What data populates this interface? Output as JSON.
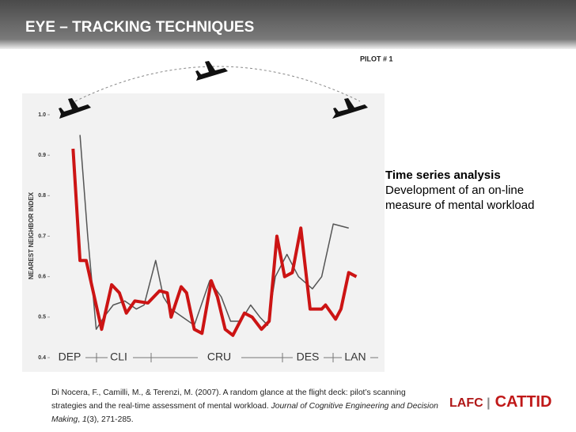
{
  "slide": {
    "title": "EYE – TRACKING TECHNIQUES",
    "note_title": "Time series analysis",
    "note_body": [
      "Development of an on-line",
      "measure of mental workload"
    ],
    "citation": [
      {
        "text": "Di Nocera, F., Camilli, M., & Terenzi, M. (2007). A random glance at the flight deck: pilot’s scanning strategies and the real-time assessment of mental workload. ",
        "italic": false
      },
      {
        "text": "Journal of Cognitive Engineering and Decision Making",
        "italic": true
      },
      {
        "text": ", ",
        "italic": false
      },
      {
        "text": "1",
        "italic": true
      },
      {
        "text": "(3), 271-285.",
        "italic": false
      }
    ],
    "logo": [
      "LAFC",
      "CATTID"
    ]
  },
  "chart_data": {
    "type": "line",
    "annotation": "PILOT # 1",
    "ylabel": "NEAREST NEIGHBOR INDEX",
    "phases": [
      "DEP",
      "CLI",
      "CRU",
      "DES",
      "LAN"
    ],
    "xlim": [
      60,
      475
    ],
    "ylim": [
      0.4,
      1.0
    ],
    "yticks": [
      {
        "value": 1.0,
        "label": "1.0"
      },
      0.9,
      0.8,
      0.7,
      0.6,
      0.5,
      0.4
    ],
    "series": [
      {
        "color": "#555555",
        "width": 1.5,
        "x": [
          97,
          107,
          118,
          128,
          140,
          155,
          170,
          180,
          195,
          205,
          215,
          230,
          245,
          265,
          280,
          292,
          305,
          318,
          330,
          340,
          350,
          365,
          380,
          398,
          410,
          425,
          445
        ],
        "values": [
          0.95,
          0.7,
          0.47,
          0.5,
          0.53,
          0.54,
          0.52,
          0.53,
          0.64,
          0.55,
          0.52,
          0.5,
          0.48,
          0.59,
          0.55,
          0.49,
          0.49,
          0.53,
          0.5,
          0.48,
          0.6,
          0.655,
          0.6,
          0.57,
          0.6,
          0.73,
          0.72
        ]
      },
      {
        "color": "#cc1414",
        "width": 4,
        "x": [
          88,
          97,
          105,
          125,
          138,
          148,
          157,
          168,
          185,
          200,
          210,
          215,
          228,
          235,
          245,
          255,
          267,
          275,
          285,
          295,
          310,
          320,
          332,
          342,
          352,
          362,
          372,
          383,
          395,
          410,
          415,
          428,
          435,
          445,
          455
        ],
        "values": [
          0.916,
          0.64,
          0.64,
          0.47,
          0.58,
          0.56,
          0.51,
          0.54,
          0.535,
          0.565,
          0.56,
          0.5,
          0.575,
          0.56,
          0.47,
          0.46,
          0.59,
          0.55,
          0.47,
          0.455,
          0.51,
          0.5,
          0.47,
          0.49,
          0.7,
          0.6,
          0.61,
          0.72,
          0.52,
          0.52,
          0.53,
          0.495,
          0.52,
          0.61,
          0.6
        ]
      }
    ]
  }
}
